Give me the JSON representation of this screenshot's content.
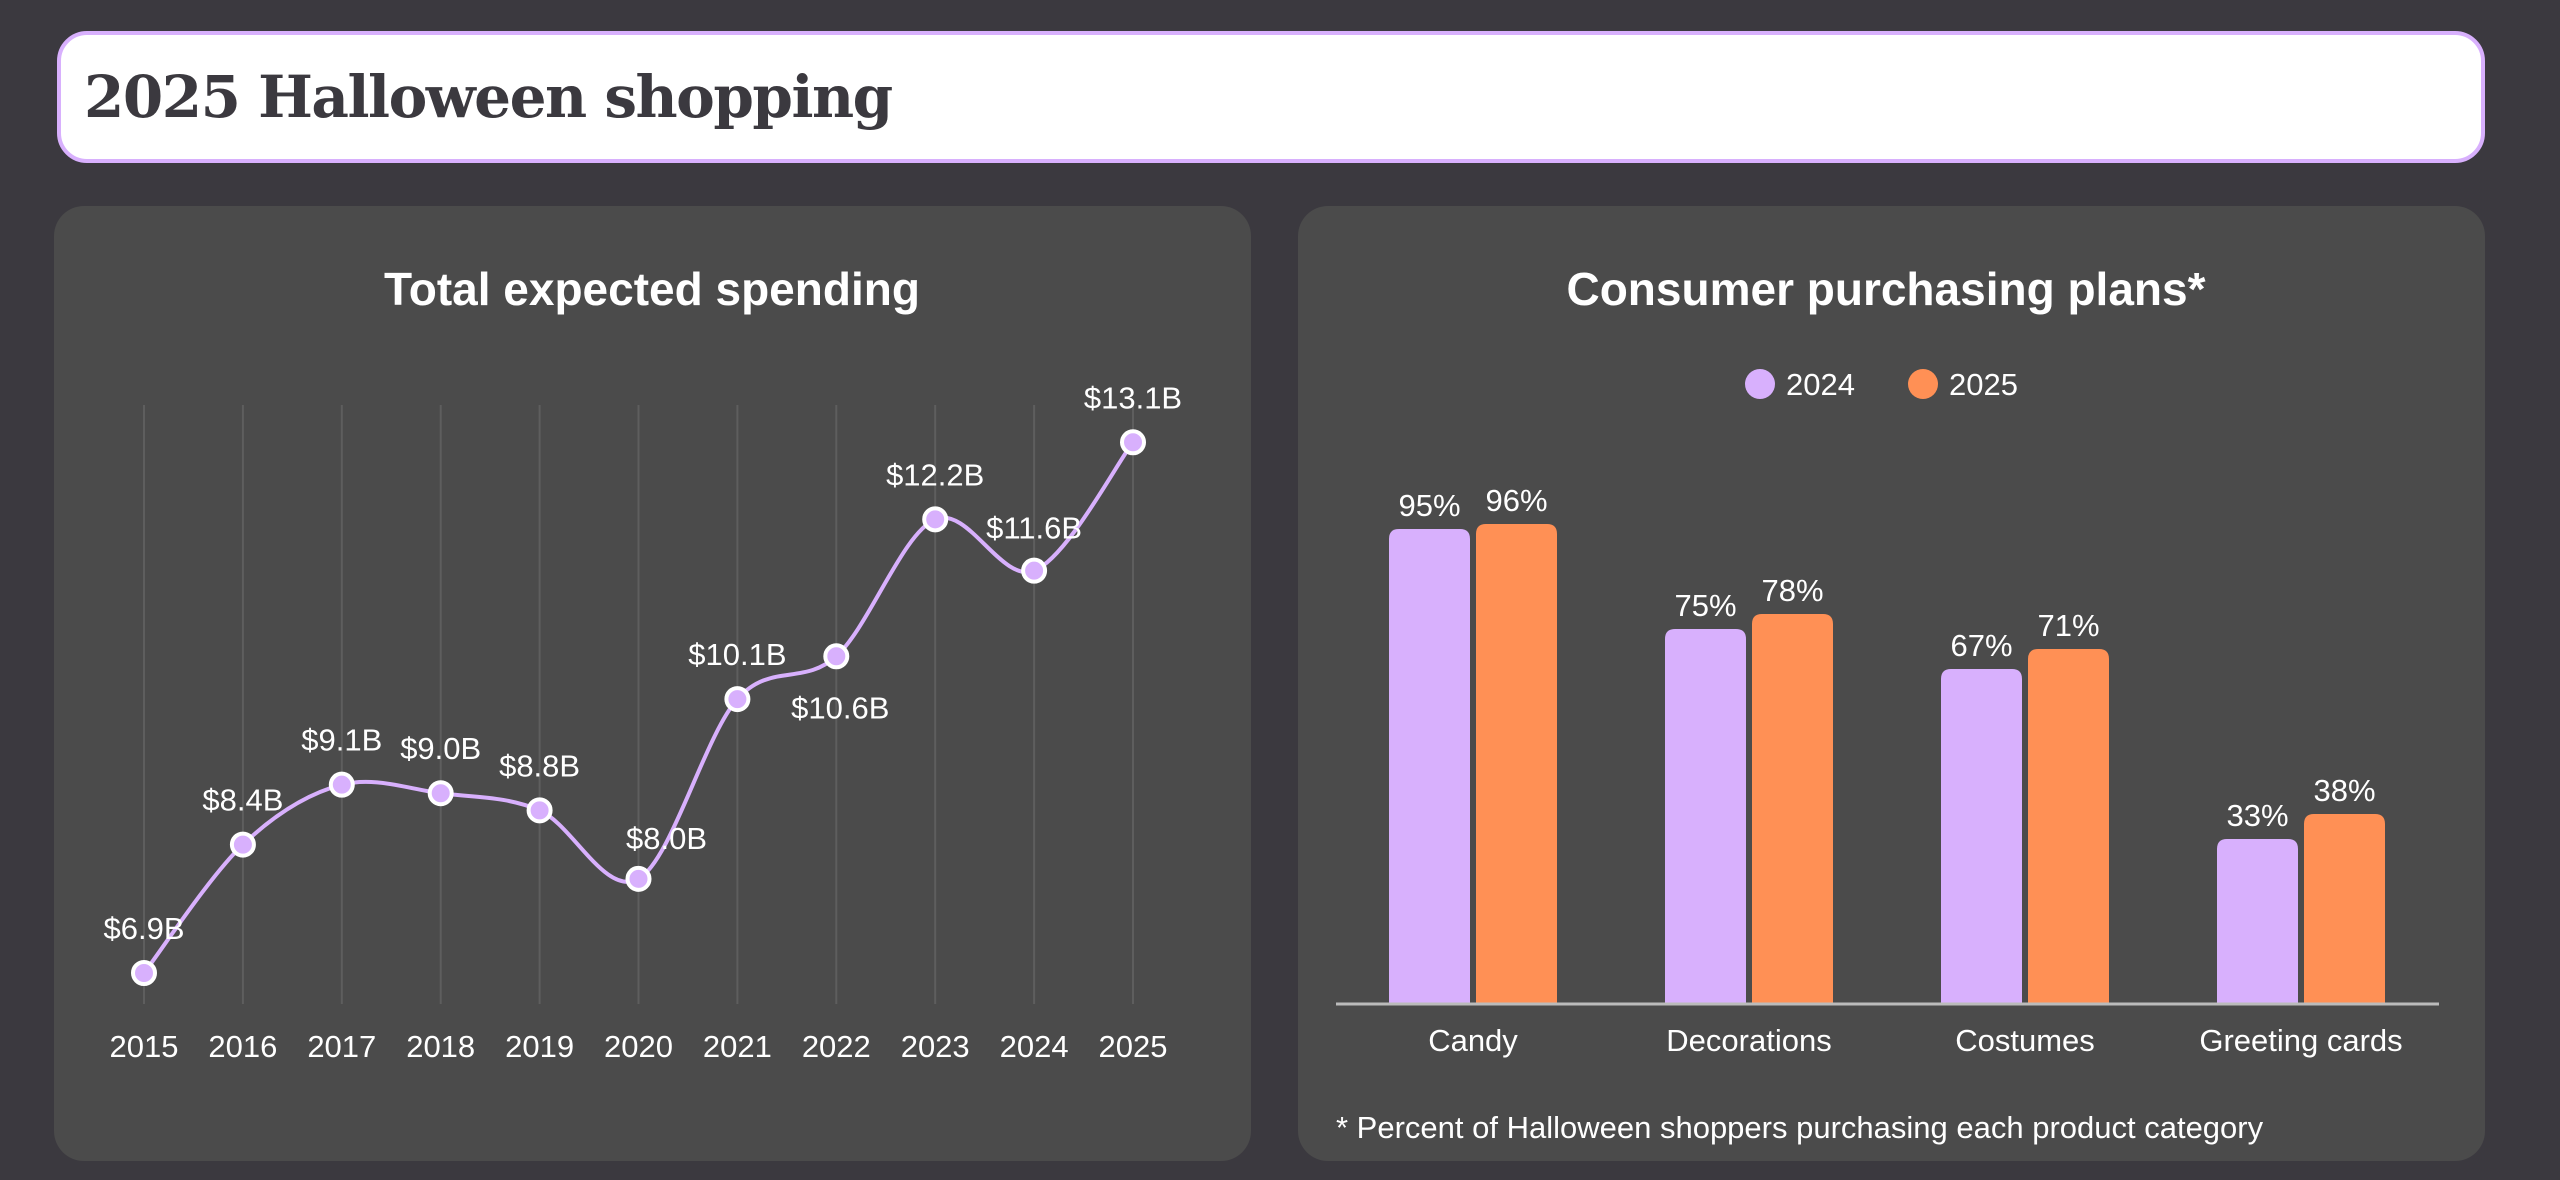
{
  "header": {
    "title": "2025 Halloween shopping"
  },
  "colors": {
    "background": "#3b393f",
    "panel": "#4b4b4b",
    "purple": "#d8b0fd",
    "orange": "#ff9055"
  },
  "chart_data": [
    {
      "type": "line",
      "title": "Total expected spending",
      "x": [
        "2015",
        "2016",
        "2017",
        "2018",
        "2019",
        "2020",
        "2021",
        "2022",
        "2023",
        "2024",
        "2025"
      ],
      "values": [
        6.9,
        8.4,
        9.1,
        9.0,
        8.8,
        8.0,
        10.1,
        10.6,
        12.2,
        11.6,
        13.1
      ],
      "labels": [
        "$6.9B",
        "$8.4B",
        "$9.1B",
        "$9.0B",
        "$8.8B",
        "$8.0B",
        "$10.1B",
        "$10.6B",
        "$12.2B",
        "$11.6B",
        "$13.1B"
      ],
      "unit": "billion USD",
      "grid": "vertical",
      "xlabel": "",
      "ylabel": ""
    },
    {
      "type": "bar",
      "title": "Consumer purchasing plans*",
      "categories": [
        "Candy",
        "Decorations",
        "Costumes",
        "Greeting cards"
      ],
      "series": [
        {
          "name": "2024",
          "values": [
            95,
            75,
            67,
            33
          ],
          "color": "#d8b0fd"
        },
        {
          "name": "2025",
          "values": [
            96,
            78,
            71,
            38
          ],
          "color": "#ff9055"
        }
      ],
      "ylim": [
        0,
        100
      ],
      "legend": "top-center",
      "footnote": "* Percent of Halloween shoppers purchasing each product category"
    }
  ]
}
